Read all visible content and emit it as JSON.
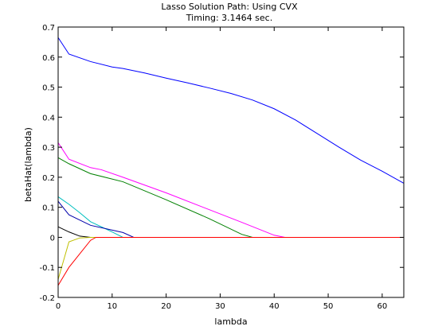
{
  "chart_data": {
    "type": "line",
    "title": "Lasso Solution Path: Using CVX",
    "subtitle": "Timing: 3.1464 sec.",
    "xlabel": "lambda",
    "ylabel": "betaHat(lambda)",
    "xlim": [
      0,
      64
    ],
    "ylim": [
      -0.2,
      0.7
    ],
    "xticks": [
      0,
      10,
      20,
      30,
      40,
      50,
      60
    ],
    "yticks": [
      -0.2,
      -0.1,
      0,
      0.1,
      0.2,
      0.3,
      0.4,
      0.5,
      0.6,
      0.7
    ],
    "grid": false,
    "legend": false,
    "series": [
      {
        "color": "#0000ff",
        "x": [
          0,
          2,
          6,
          10,
          12,
          16,
          20,
          24,
          28,
          32,
          36,
          40,
          44,
          48,
          52,
          56,
          60,
          64
        ],
        "y": [
          0.665,
          0.61,
          0.585,
          0.567,
          0.562,
          0.547,
          0.53,
          0.514,
          0.497,
          0.479,
          0.457,
          0.428,
          0.39,
          0.345,
          0.3,
          0.257,
          0.22,
          0.18
        ]
      },
      {
        "color": "#ff00ff",
        "x": [
          0,
          2,
          6,
          8,
          12,
          20,
          28,
          34,
          40,
          42,
          64
        ],
        "y": [
          0.315,
          0.26,
          0.232,
          0.225,
          0.2,
          0.148,
          0.092,
          0.05,
          0.007,
          0,
          0
        ]
      },
      {
        "color": "#008000",
        "x": [
          0,
          2,
          6,
          12,
          20,
          28,
          34,
          36,
          64
        ],
        "y": [
          0.265,
          0.245,
          0.212,
          0.185,
          0.125,
          0.062,
          0.01,
          0,
          0
        ]
      },
      {
        "color": "#00bfbf",
        "x": [
          0,
          2,
          4,
          6,
          10,
          12,
          64
        ],
        "y": [
          0.135,
          0.11,
          0.082,
          0.052,
          0.018,
          0,
          0
        ]
      },
      {
        "color": "#0000aa",
        "x": [
          0,
          2,
          6,
          12,
          14,
          64
        ],
        "y": [
          0.12,
          0.075,
          0.04,
          0.016,
          0,
          0
        ]
      },
      {
        "color": "#000000",
        "x": [
          0,
          2,
          4,
          6,
          64
        ],
        "y": [
          0.035,
          0.018,
          0.004,
          0,
          0
        ]
      },
      {
        "color": "#bfbf00",
        "x": [
          0,
          2,
          4,
          6,
          64
        ],
        "y": [
          -0.14,
          -0.015,
          -0.002,
          0,
          0
        ]
      },
      {
        "color": "#ff0000",
        "x": [
          0,
          2,
          4,
          6,
          7,
          64
        ],
        "y": [
          -0.16,
          -0.1,
          -0.055,
          -0.01,
          0,
          0
        ]
      }
    ]
  }
}
